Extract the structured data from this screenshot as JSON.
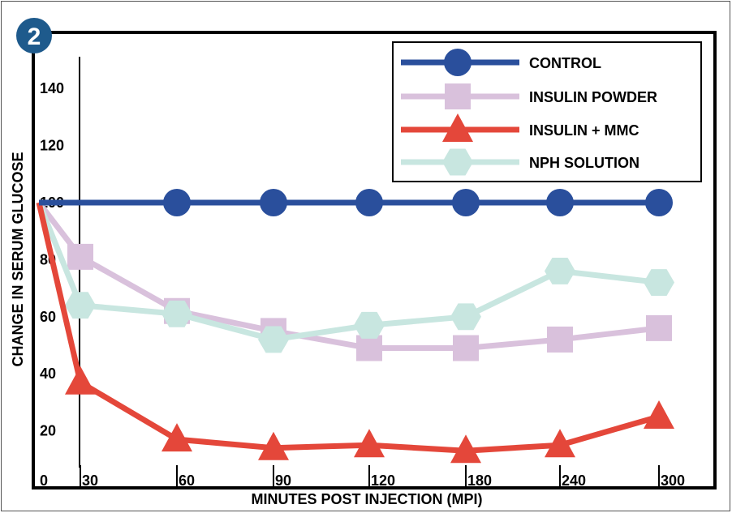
{
  "panel_badge": "2",
  "chart_data": {
    "type": "line",
    "title": "",
    "xlabel": "MINUTES POST INJECTION (MPI)",
    "ylabel": "CHANGE IN SERUM GLUCOSE",
    "x_tick_labels": [
      "0",
      "30",
      "60",
      "90",
      "120",
      "180",
      "240",
      "300"
    ],
    "y_tick_labels": [
      "20",
      "40",
      "60",
      "80",
      "100",
      "120",
      "140"
    ],
    "y_ticks": [
      20,
      40,
      60,
      80,
      100,
      120,
      140
    ],
    "ylim": [
      0,
      150
    ],
    "grid": false,
    "legend_position": "top-right",
    "series": [
      {
        "name": "CONTROL",
        "marker": "circle",
        "color": "#2a4f9c",
        "points": [
          {
            "x": 0,
            "y": 100
          },
          {
            "x": 60,
            "y": 100
          },
          {
            "x": 90,
            "y": 100
          },
          {
            "x": 120,
            "y": 100
          },
          {
            "x": 180,
            "y": 100
          },
          {
            "x": 240,
            "y": 100
          },
          {
            "x": 300,
            "y": 100
          }
        ]
      },
      {
        "name": "INSULIN POWDER",
        "marker": "square",
        "color": "#d9c1dc",
        "points": [
          {
            "x": 0,
            "y": 100
          },
          {
            "x": 30,
            "y": 81
          },
          {
            "x": 60,
            "y": 62
          },
          {
            "x": 90,
            "y": 55
          },
          {
            "x": 120,
            "y": 49
          },
          {
            "x": 180,
            "y": 49
          },
          {
            "x": 240,
            "y": 52
          },
          {
            "x": 300,
            "y": 56
          }
        ]
      },
      {
        "name": "INSULIN + MMC",
        "marker": "triangle",
        "color": "#e4473a",
        "points": [
          {
            "x": 0,
            "y": 100
          },
          {
            "x": 30,
            "y": 37
          },
          {
            "x": 60,
            "y": 17
          },
          {
            "x": 90,
            "y": 14
          },
          {
            "x": 120,
            "y": 15
          },
          {
            "x": 180,
            "y": 13
          },
          {
            "x": 240,
            "y": 15
          },
          {
            "x": 300,
            "y": 25
          }
        ]
      },
      {
        "name": "NPH SOLUTION",
        "marker": "hexagon",
        "color": "#c8e6e0",
        "points": [
          {
            "x": 0,
            "y": 100
          },
          {
            "x": 30,
            "y": 64
          },
          {
            "x": 60,
            "y": 61
          },
          {
            "x": 90,
            "y": 52
          },
          {
            "x": 120,
            "y": 57
          },
          {
            "x": 180,
            "y": 60
          },
          {
            "x": 240,
            "y": 76
          },
          {
            "x": 300,
            "y": 72
          }
        ]
      }
    ]
  }
}
